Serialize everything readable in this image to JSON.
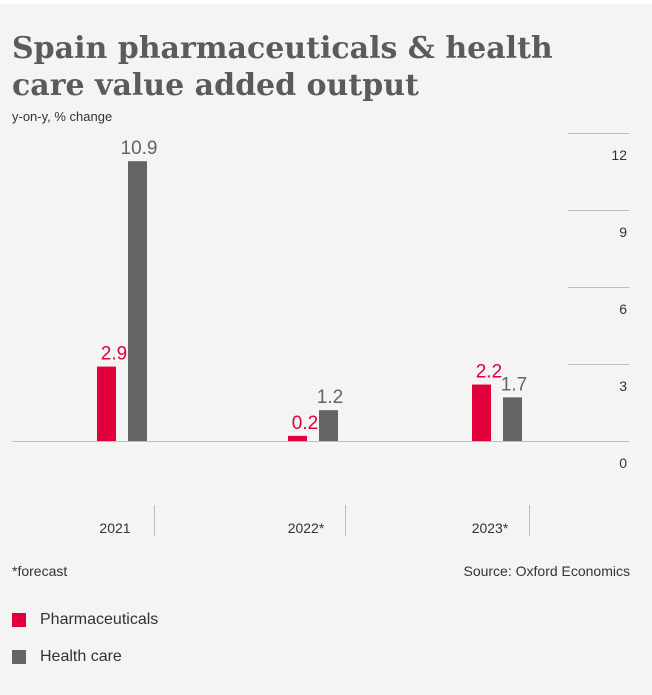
{
  "chart_data": {
    "type": "bar",
    "title": "Spain pharmaceuticals & health care value added output",
    "subtitle": "y-on-y, % change",
    "categories": [
      "2021",
      "2022*",
      "2023*"
    ],
    "series": [
      {
        "name": "Pharmaceuticals",
        "color": "#e1003c",
        "values": [
          2.9,
          0.2,
          2.2
        ]
      },
      {
        "name": "Health care",
        "color": "#646464",
        "values": [
          10.9,
          1.2,
          1.7
        ]
      }
    ],
    "y_ticks": [
      "0",
      "3",
      "6",
      "9",
      "12"
    ],
    "ylim": [
      0,
      12
    ],
    "yaxis_side": "right",
    "grid": false,
    "legend_position": "bottom-left",
    "footnote": "*forecast",
    "source": "Source: Oxford Economics"
  }
}
